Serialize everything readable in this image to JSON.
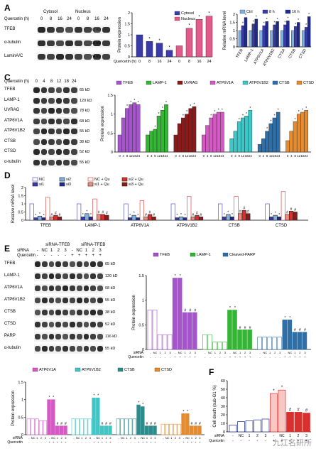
{
  "panels": {
    "A": {
      "label": "A",
      "header_left": "Cytosol",
      "header_right": "Nucleus",
      "quercetin_label": "Quercetin (h)",
      "lanes": [
        "0",
        "8",
        "16",
        "24",
        "0",
        "8",
        "16",
        "24"
      ],
      "blots": [
        {
          "name": "TFEB",
          "kd": "63 kD"
        },
        {
          "name": "α-tubulin",
          "kd": "55 kD"
        },
        {
          "name": "LaminA/C",
          "kd": "74 kD\n65 kD"
        }
      ]
    },
    "C": {
      "label": "C",
      "quercetin_label": "Quercetin (h)",
      "lanes": [
        "0",
        "4",
        "8",
        "12",
        "18",
        "24"
      ],
      "blots": [
        {
          "name": "TFEB",
          "kd": "65 kD"
        },
        {
          "name": "LAMP-1",
          "kd": "120 kD"
        },
        {
          "name": "UVRAG",
          "kd": "78 kD"
        },
        {
          "name": "ATP6V1A",
          "kd": "68 kD"
        },
        {
          "name": "ATP6V1B2",
          "kd": "55 kD"
        },
        {
          "name": "CTSB",
          "kd": "38 kD"
        },
        {
          "name": "CTSD",
          "kd": "52 kD"
        },
        {
          "name": "α-tubulin",
          "kd": "55 kD"
        }
      ]
    },
    "D": {
      "label": "D"
    },
    "E": {
      "label": "E",
      "header1": "siRNA-TFEB",
      "header2": "siRNA-TFEB",
      "sirna_label": "siRNA",
      "quercetin_label": "Quercetin",
      "sirna_lanes": [
        "-",
        "NC",
        "1",
        "2",
        "3",
        "-",
        "NC",
        "1",
        "2",
        "3"
      ],
      "quercetin_lanes": [
        "-",
        "-",
        "-",
        "-",
        "-",
        "+",
        "+",
        "+",
        "+",
        "+"
      ],
      "blots": [
        {
          "name": "TFEB",
          "kd": "65 kD"
        },
        {
          "name": "LAMP-1",
          "kd": "120 kD"
        },
        {
          "name": "ATP6V1A",
          "kd": "68 kD"
        },
        {
          "name": "ATP6V1B2",
          "kd": "55 kD"
        },
        {
          "name": "CTSB",
          "kd": "38 kD"
        },
        {
          "name": "CTSD",
          "kd": "52 kD"
        },
        {
          "name": "PARP",
          "kd": "116 kD\n89 kD"
        },
        {
          "name": "α-tubulin",
          "kd": "55 kD"
        }
      ]
    },
    "F": {
      "label": "F"
    }
  },
  "colors": {
    "blue": "#3a3aa8",
    "pink": "#e05a8a",
    "lightblue": "#7fb0de",
    "dblue": "#1e2b8c",
    "teal": "#2e8b8b",
    "purple": "#a455c9",
    "green": "#35b535",
    "darkred": "#8b1a1a",
    "magenta": "#d35ac2",
    "cyan": "#3fc7c7",
    "steel": "#2f6ea6",
    "orange": "#e68a2e",
    "red": "#d8302e",
    "salmon": "#f08b80"
  },
  "watermark": "九江名研所",
  "chart_data": [
    {
      "id": "A",
      "type": "bar",
      "ylabel": "Protein expression",
      "categories": [
        "0",
        "8",
        "16",
        "24",
        "0",
        "8",
        "16",
        "24"
      ],
      "xlabel_prefix": "Quercetin (h)",
      "ylim": [
        0,
        2
      ],
      "yticks": [
        0,
        0.5,
        1.0,
        1.5,
        2.0
      ],
      "legend": [
        "Cytosol",
        "Nucleus"
      ],
      "series": [
        {
          "name": "Cytosol",
          "values": [
            1.0,
            0.7,
            0.62,
            0.3,
            null,
            null,
            null,
            null
          ]
        },
        {
          "name": "Nucleus",
          "values": [
            null,
            null,
            null,
            null,
            0.5,
            1.3,
            1.7,
            1.85
          ]
        }
      ],
      "stars": [
        false,
        true,
        true,
        true,
        false,
        true,
        true,
        true
      ]
    },
    {
      "id": "B",
      "type": "bar",
      "ylabel": "Relative mRNA level",
      "ylim": [
        0,
        2
      ],
      "yticks": [
        0,
        0.5,
        1.0,
        1.5,
        2.0
      ],
      "legend": [
        "Ctrl",
        "8 h",
        "16 h"
      ],
      "categories": [
        "TFEB",
        "LAMP-1",
        "ATP6V1A",
        "ATP6V1B2",
        "CTSA",
        "CTSB",
        "CTSD"
      ],
      "series": [
        {
          "name": "Ctrl",
          "values": [
            1,
            1,
            1,
            1,
            1,
            1,
            1
          ]
        },
        {
          "name": "8 h",
          "values": [
            1.3,
            1.4,
            1.3,
            1.35,
            1.35,
            1.25,
            1.2
          ]
        },
        {
          "name": "16 h",
          "values": [
            1.8,
            1.7,
            1.55,
            1.55,
            1.6,
            1.5,
            1.85
          ]
        }
      ]
    },
    {
      "id": "C",
      "type": "bar",
      "ylabel": "Protein expression",
      "ylim": [
        0,
        1.5
      ],
      "yticks": [
        0,
        0.5,
        1.0,
        1.5
      ],
      "legend": [
        "TFEB",
        "LAMP-1",
        "UVRAG",
        "ATP6V1A",
        "ATP6V1B2",
        "CTSB",
        "CTSD"
      ],
      "categories": [
        "0",
        "4",
        "8",
        "12",
        "18",
        "24"
      ],
      "series": [
        {
          "name": "TFEB",
          "values": [
            0.45,
            0.9,
            1.15,
            1.25,
            1.3,
            1.25
          ]
        },
        {
          "name": "LAMP-1",
          "values": [
            0.45,
            0.55,
            0.6,
            0.95,
            1.1,
            1.25
          ]
        },
        {
          "name": "UVRAG",
          "values": [
            0.45,
            0.75,
            0.9,
            1.0,
            1.15,
            1.2
          ]
        },
        {
          "name": "ATP6V1A",
          "values": [
            0.45,
            0.7,
            0.9,
            1.0,
            1.05,
            1.05
          ]
        },
        {
          "name": "ATP6V1B2",
          "values": [
            0.35,
            0.55,
            0.8,
            0.9,
            0.95,
            1.1
          ]
        },
        {
          "name": "CTSB",
          "values": [
            0.2,
            0.35,
            0.55,
            0.75,
            0.9,
            1.05
          ]
        },
        {
          "name": "CTSD",
          "values": [
            0.3,
            0.55,
            0.8,
            1.0,
            1.05,
            1.1
          ]
        }
      ]
    },
    {
      "id": "D",
      "type": "bar",
      "ylabel": "Relative mRNA level",
      "ylim": [
        0,
        2
      ],
      "yticks": [
        0,
        0.5,
        1.0,
        1.5,
        2.0
      ],
      "legend": [
        "NC",
        "si1",
        "si2",
        "si3",
        "NC + Qu",
        "si1 + Qu",
        "si2 + Qu",
        "si3 + Qu"
      ],
      "categories": [
        "TFEB",
        "LAMP-1",
        "ATP6V1A",
        "ATP6V1B2",
        "CTSB",
        "CTSD"
      ],
      "series": [
        {
          "name": "NC",
          "values": [
            1,
            1,
            1,
            1,
            1,
            1
          ]
        },
        {
          "name": "si1",
          "values": [
            0.15,
            0.2,
            0.15,
            0.15,
            0.2,
            0.2
          ]
        },
        {
          "name": "si2",
          "values": [
            0.25,
            0.4,
            0.3,
            0.2,
            0.35,
            0.3
          ]
        },
        {
          "name": "si3",
          "values": [
            0.15,
            0.2,
            0.15,
            0.15,
            0.2,
            0.2
          ]
        },
        {
          "name": "NC + Qu",
          "values": [
            1.4,
            1.3,
            1.2,
            1.45,
            1.45,
            1.75
          ]
        },
        {
          "name": "si1 + Qu",
          "values": [
            0.2,
            0.35,
            0.2,
            0.2,
            0.4,
            0.35
          ]
        },
        {
          "name": "si2 + Qu",
          "values": [
            0.3,
            0.35,
            0.35,
            0.3,
            0.6,
            0.55
          ]
        },
        {
          "name": "si3 + Qu",
          "values": [
            0.2,
            0.3,
            0.2,
            0.2,
            0.4,
            0.5
          ]
        }
      ]
    },
    {
      "id": "E1",
      "type": "bar",
      "ylabel": "Protein expression",
      "ylim": [
        0,
        1.5
      ],
      "yticks": [
        0,
        0.5,
        1.0,
        1.5
      ],
      "legend": [
        "TFEB",
        "LAMP-1",
        "Cleaved-PARP"
      ],
      "groups": [
        {
          "name": "TFEB",
          "values": [
            0.8,
            0.8,
            0.3,
            0.3,
            0.3,
            1.45,
            1.45,
            0.75,
            0.75,
            0.75
          ]
        },
        {
          "name": "LAMP-1",
          "values": [
            0.3,
            0.3,
            0.15,
            0.15,
            0.15,
            0.8,
            0.8,
            0.4,
            0.4,
            0.4
          ]
        },
        {
          "name": "Cleaved-PARP",
          "values": [
            0.25,
            0.25,
            0.25,
            0.25,
            0.25,
            0.6,
            0.6,
            0.35,
            0.35,
            0.35
          ]
        }
      ],
      "sirna": [
        "-",
        "NC",
        "1",
        "2",
        "3",
        "-",
        "NC",
        "1",
        "2",
        "3"
      ],
      "quercetin": [
        "-",
        "-",
        "-",
        "-",
        "-",
        "+",
        "+",
        "+",
        "+",
        "+"
      ]
    },
    {
      "id": "E2",
      "type": "bar",
      "ylabel": "Protein expression",
      "ylim": [
        0,
        1.5
      ],
      "yticks": [
        0,
        0.5,
        1.0,
        1.5
      ],
      "legend": [
        "ATP6V1A",
        "ATP6V1B2",
        "CTSB",
        "CTSD"
      ],
      "groups": [
        {
          "name": "ATP6V1A",
          "values": [
            0.45,
            0.45,
            0.45,
            0.4,
            0.4,
            1.0,
            1.0,
            0.25,
            0.25,
            0.25
          ]
        },
        {
          "name": "ATP6V1B2",
          "values": [
            0.45,
            0.45,
            0.45,
            0.45,
            0.45,
            1.05,
            1.05,
            0.25,
            0.25,
            0.25
          ]
        },
        {
          "name": "CTSB",
          "values": [
            0.45,
            0.45,
            0.45,
            0.45,
            0.45,
            0.85,
            0.8,
            0.25,
            0.25,
            0.25
          ]
        },
        {
          "name": "CTSD",
          "values": [
            0.3,
            0.3,
            0.3,
            0.3,
            0.3,
            0.6,
            0.6,
            0.25,
            0.25,
            0.25
          ]
        }
      ],
      "sirna": [
        "-",
        "NC",
        "1",
        "2",
        "3",
        "-",
        "NC",
        "1",
        "2",
        "3"
      ],
      "quercetin": [
        "-",
        "-",
        "-",
        "-",
        "-",
        "+",
        "+",
        "+",
        "+",
        "+"
      ]
    },
    {
      "id": "F",
      "type": "bar",
      "ylabel": "Cell death (sub-G1 %)",
      "ylim": [
        0,
        60
      ],
      "yticks": [
        0,
        10,
        20,
        30,
        40,
        50,
        60
      ],
      "categories": [
        "-",
        "NC",
        "1",
        "2",
        "3",
        "-",
        "NC",
        "1",
        "2",
        "3"
      ],
      "quercetin": [
        "-",
        "-",
        "-",
        "-",
        "-",
        "+",
        "+",
        "+",
        "+",
        "+"
      ],
      "values": [
        8,
        12,
        13,
        14,
        15,
        45,
        49,
        23,
        23,
        22
      ]
    }
  ]
}
